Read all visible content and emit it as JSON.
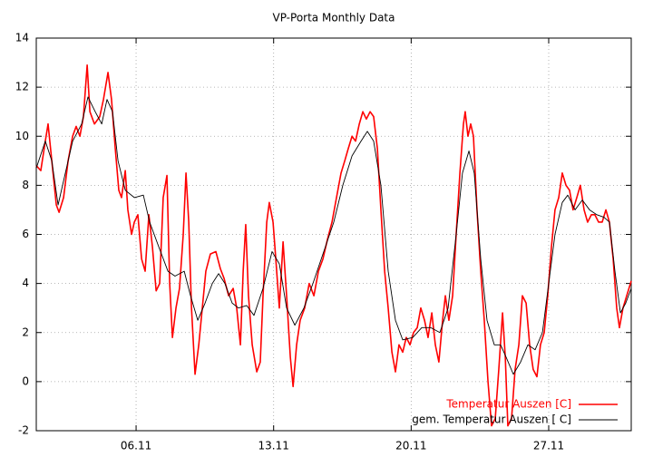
{
  "chart_data": {
    "type": "line",
    "title": "VP-Porta Monthly Data",
    "xlim": [
      0.92,
      31.2
    ],
    "xticks": [
      {
        "value": 6,
        "label": "06.11"
      },
      {
        "value": 13,
        "label": "13.11"
      },
      {
        "value": 20,
        "label": "20.11"
      },
      {
        "value": 27,
        "label": "27.11"
      }
    ],
    "ylim": [
      -2,
      14
    ],
    "yticks": [
      -2,
      0,
      2,
      4,
      6,
      8,
      10,
      12,
      14
    ],
    "grid": true,
    "legend": "lower right",
    "series": [
      {
        "name": "Temperatur Auszen [C]",
        "color": "#ff0000",
        "x": [
          0.92,
          1.15,
          1.38,
          1.52,
          1.71,
          1.94,
          2.08,
          2.31,
          2.54,
          2.77,
          2.95,
          3.14,
          3.32,
          3.51,
          3.65,
          3.88,
          4.15,
          4.34,
          4.57,
          4.75,
          4.94,
          5.12,
          5.26,
          5.45,
          5.58,
          5.77,
          5.91,
          6.09,
          6.28,
          6.46,
          6.65,
          6.83,
          7.02,
          7.2,
          7.38,
          7.57,
          7.71,
          7.85,
          8.03,
          8.21,
          8.4,
          8.54,
          8.68,
          8.82,
          9.0,
          9.19,
          9.37,
          9.55,
          9.78,
          10.06,
          10.29,
          10.48,
          10.71,
          10.94,
          11.12,
          11.31,
          11.45,
          11.58,
          11.72,
          11.91,
          12.14,
          12.32,
          12.46,
          12.65,
          12.78,
          12.97,
          13.11,
          13.29,
          13.48,
          13.66,
          13.85,
          13.99,
          14.17,
          14.35,
          14.58,
          14.81,
          15.05,
          15.28,
          15.51,
          15.74,
          15.97,
          16.2,
          16.43,
          16.62,
          16.8,
          16.99,
          17.17,
          17.36,
          17.54,
          17.72,
          17.91,
          18.09,
          18.28,
          18.46,
          18.65,
          18.83,
          19.02,
          19.2,
          19.38,
          19.57,
          19.75,
          19.94,
          20.12,
          20.31,
          20.49,
          20.68,
          20.86,
          21.05,
          21.23,
          21.41,
          21.6,
          21.74,
          21.92,
          22.11,
          22.29,
          22.48,
          22.66,
          22.75,
          22.89,
          23.03,
          23.17,
          23.35,
          23.54,
          23.72,
          23.91,
          24.09,
          24.28,
          24.46,
          24.65,
          24.79,
          24.92,
          25.11,
          25.29,
          25.48,
          25.66,
          25.85,
          26.03,
          26.21,
          26.4,
          26.58,
          26.77,
          26.95,
          27.14,
          27.32,
          27.51,
          27.69,
          27.88,
          28.06,
          28.24,
          28.43,
          28.61,
          28.8,
          28.98,
          29.17,
          29.35,
          29.54,
          29.72,
          29.91,
          30.09,
          30.28,
          30.46,
          30.6,
          30.78,
          30.97,
          31.2
        ],
        "values": [
          8.8,
          8.6,
          9.8,
          10.5,
          9.0,
          7.2,
          6.9,
          7.5,
          9.0,
          10.0,
          10.4,
          10.0,
          10.8,
          12.9,
          11.0,
          10.5,
          10.8,
          11.5,
          12.6,
          11.5,
          9.5,
          7.8,
          7.5,
          8.6,
          7.0,
          6.0,
          6.5,
          6.8,
          5.0,
          4.5,
          6.8,
          5.5,
          3.7,
          4.0,
          7.5,
          8.4,
          4.0,
          1.8,
          3.0,
          3.8,
          6.0,
          8.5,
          6.5,
          3.0,
          0.3,
          1.5,
          3.0,
          4.5,
          5.2,
          5.3,
          4.6,
          4.2,
          3.5,
          3.8,
          3.0,
          1.5,
          4.5,
          6.4,
          3.5,
          1.5,
          0.4,
          0.8,
          3.5,
          6.5,
          7.3,
          6.5,
          5.0,
          3.0,
          5.7,
          3.5,
          1.0,
          -0.2,
          1.5,
          2.5,
          3.0,
          4.0,
          3.5,
          4.5,
          5.0,
          5.8,
          6.5,
          7.5,
          8.5,
          9.0,
          9.5,
          10.0,
          9.8,
          10.5,
          11.0,
          10.7,
          11.0,
          10.8,
          9.5,
          7.0,
          4.5,
          3.0,
          1.2,
          0.4,
          1.5,
          1.2,
          1.8,
          1.5,
          2.0,
          2.2,
          3.0,
          2.5,
          1.8,
          2.8,
          1.5,
          0.8,
          2.5,
          3.5,
          2.5,
          3.5,
          6.0,
          8.5,
          10.5,
          11.0,
          10.0,
          10.5,
          10.0,
          7.0,
          4.5,
          2.5,
          0.0,
          -1.8,
          -1.5,
          0.5,
          2.8,
          1.0,
          -1.8,
          -1.5,
          0.5,
          1.5,
          3.5,
          3.2,
          1.5,
          0.5,
          0.2,
          1.5,
          2.0,
          3.5,
          5.5,
          7.0,
          7.5,
          8.5,
          8.0,
          7.8,
          7.0,
          7.5,
          8.0,
          7.0,
          6.5,
          6.8,
          6.8,
          6.5,
          6.5,
          7.0,
          6.5,
          5.0,
          3.0,
          2.2,
          3.0,
          3.5,
          4.1
        ]
      },
      {
        "name": "gem. Temperatur Auszen [ C]",
        "color": "#000000",
        "x": [
          0.92,
          1.38,
          1.71,
          2.03,
          2.4,
          2.77,
          3.23,
          3.55,
          3.92,
          4.25,
          4.52,
          4.8,
          5.08,
          5.45,
          5.91,
          6.37,
          6.69,
          7.15,
          7.62,
          7.98,
          8.45,
          8.77,
          9.14,
          9.51,
          9.88,
          10.2,
          10.52,
          10.89,
          11.21,
          11.63,
          12.0,
          12.46,
          12.92,
          13.29,
          13.66,
          14.08,
          14.54,
          15.0,
          15.51,
          16.06,
          16.52,
          16.99,
          17.45,
          17.77,
          18.09,
          18.46,
          18.83,
          19.2,
          19.57,
          20.08,
          20.54,
          21.0,
          21.46,
          21.88,
          22.29,
          22.61,
          22.94,
          23.21,
          23.54,
          23.86,
          24.23,
          24.55,
          24.83,
          25.2,
          25.57,
          25.94,
          26.31,
          26.68,
          27.0,
          27.32,
          27.69,
          27.97,
          28.34,
          28.71,
          29.08,
          29.45,
          29.81,
          30.09,
          30.37,
          30.65,
          30.92,
          31.2
        ],
        "values": [
          8.7,
          9.8,
          9.0,
          7.2,
          8.5,
          9.8,
          10.5,
          11.6,
          11.0,
          10.5,
          11.5,
          11.0,
          9.0,
          7.8,
          7.5,
          7.6,
          6.5,
          5.5,
          4.5,
          4.3,
          4.5,
          3.5,
          2.5,
          3.2,
          4.0,
          4.4,
          4.0,
          3.2,
          3.0,
          3.1,
          2.7,
          3.8,
          5.3,
          4.8,
          3.0,
          2.3,
          3.0,
          4.0,
          5.2,
          6.5,
          8.0,
          9.2,
          9.8,
          10.2,
          9.8,
          8.0,
          4.5,
          2.5,
          1.7,
          1.8,
          2.2,
          2.2,
          2.0,
          3.0,
          6.0,
          8.5,
          9.4,
          8.5,
          5.0,
          2.5,
          1.5,
          1.5,
          1.0,
          0.3,
          0.8,
          1.5,
          1.3,
          2.0,
          4.0,
          6.0,
          7.3,
          7.6,
          7.0,
          7.4,
          7.0,
          6.8,
          6.7,
          6.5,
          4.5,
          2.8,
          3.2,
          3.8
        ]
      }
    ]
  }
}
